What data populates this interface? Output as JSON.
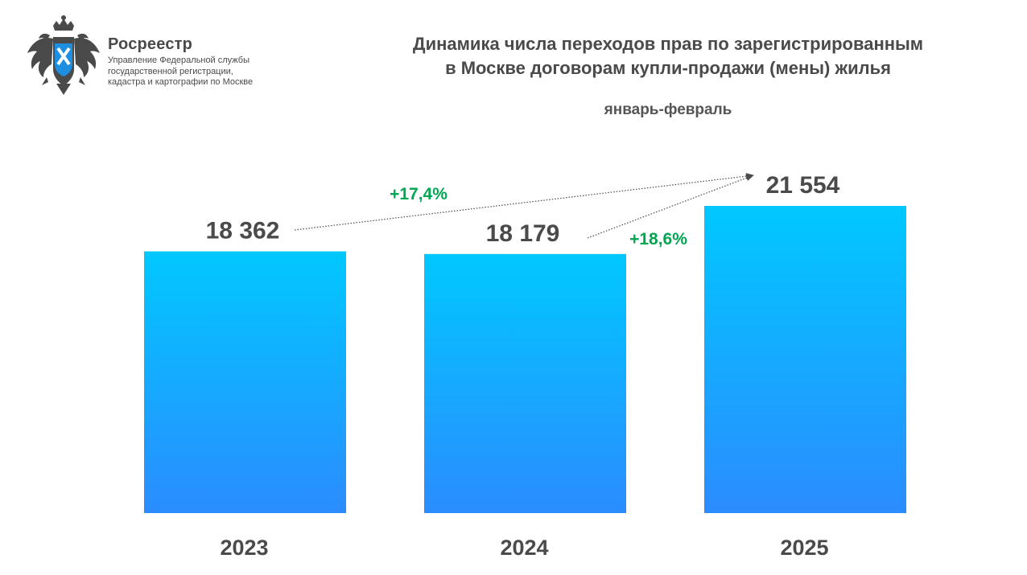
{
  "header": {
    "org_name": "Росреестр",
    "org_sub": [
      "Управление Федеральной службы",
      "государственной регистрации,",
      "кадастра и картографии по Москве"
    ],
    "title_lines": [
      "Динамика числа переходов прав по зарегистрированным",
      "в Москве договорам купли-продажи (мены) жилья"
    ],
    "subtitle": "январь-февраль"
  },
  "colors": {
    "bar_top": "#00c8ff",
    "bar_bottom": "#2b8cff",
    "text": "#4a4a4a",
    "growth": "#00a651",
    "emblem": "#4a4a4a",
    "shield": "#1e8fe0"
  },
  "icons": {
    "emblem": "double-headed-eagle-emblem-icon"
  },
  "chart_data": {
    "type": "bar",
    "categories": [
      "2023",
      "2024",
      "2025"
    ],
    "values": [
      18362,
      18179,
      21554
    ],
    "value_labels": [
      "18 362",
      "18 179",
      "21 554"
    ],
    "title": "Динамика числа переходов прав по зарегистрированным в Москве договорам купли-продажи (мены) жилья",
    "subtitle": "январь-февраль",
    "xlabel": "",
    "ylabel": "",
    "ylim": [
      0,
      21554
    ],
    "grid": false,
    "annotations": [
      {
        "text": "+17,4%",
        "from": "2023",
        "to": "2025"
      },
      {
        "text": "+18,6%",
        "from": "2024",
        "to": "2025"
      }
    ]
  }
}
